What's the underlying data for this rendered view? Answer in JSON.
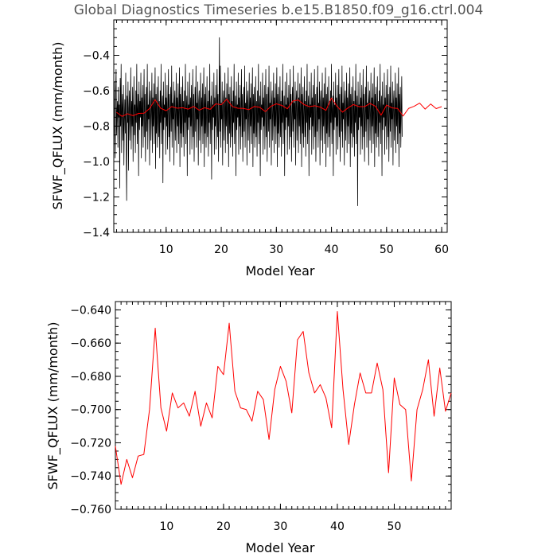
{
  "title": "Global Diagnostics Timeseries b.e15.B1850.f09_g16.ctrl.004",
  "colors": {
    "monthly_line": "#000000",
    "annual_line": "#ff0000"
  },
  "chart_data": [
    {
      "type": "line",
      "xlabel": "Model Year",
      "ylabel": "SFWF_QFLUX (mm/month)",
      "xlim": [
        0.5,
        61
      ],
      "ylim": [
        -1.4,
        -0.2
      ],
      "xticks": [
        10,
        20,
        30,
        40,
        50,
        60
      ],
      "yticks": [
        -1.4,
        -1.2,
        -1.0,
        -0.8,
        -0.6,
        -0.4
      ],
      "ytick_labels": [
        "−1.4",
        "−1.2",
        "−1.0",
        "−0.8",
        "−0.6",
        "−0.4"
      ],
      "series": [
        {
          "name": "monthly",
          "color": "#000000",
          "x_start": 0.5,
          "x_step": 0.0833333,
          "values": [
            -0.72,
            -0.55,
            -0.82,
            -0.98,
            -0.6,
            -0.48,
            -0.85,
            -0.72,
            -0.66,
            -0.92,
            -0.58,
            -0.75,
            -0.68,
            -1.15,
            -0.53,
            -0.8,
            -0.45,
            -0.95,
            -0.7,
            -0.62,
            -0.88,
            -0.57,
            -1.02,
            -0.76,
            -0.65,
            -0.84,
            -0.5,
            -0.9,
            -1.22,
            -0.63,
            -0.78,
            -0.55,
            -1.05,
            -0.7,
            -0.6,
            -0.88,
            -0.74,
            -0.47,
            -0.93,
            -0.66,
            -0.8,
            -0.58,
            -1.0,
            -0.72,
            -0.52,
            -0.85,
            -0.68,
            -0.95,
            -0.6,
            -0.78,
            -0.45,
            -0.9,
            -0.7,
            -0.62,
            -1.08,
            -0.55,
            -0.82,
            -0.66,
            -0.75,
            -0.5,
            -0.98,
            -0.64,
            -0.8,
            -0.57,
            -0.92,
            -0.7,
            -0.48,
            -0.86,
            -0.62,
            -1.0,
            -0.74,
            -0.58,
            -0.83,
            -0.45,
            -0.93,
            -0.68,
            -0.76,
            -0.55,
            -1.02,
            -0.66,
            -0.6,
            -0.88,
            -0.72,
            -0.5,
            -0.95,
            -0.64,
            -0.8,
            -0.56,
            -0.9,
            -0.7,
            -0.47,
            -1.04,
            -0.62,
            -0.84,
            -0.58,
            -0.92,
            -0.73,
            -0.52,
            -0.86,
            -0.66,
            -0.98,
            -0.6,
            -0.78,
            -0.45,
            -0.9,
            -0.7,
            -0.63,
            -1.12,
            -0.55,
            -0.82,
            -0.68,
            -0.75,
            -0.5,
            -0.96,
            -0.64,
            -0.8,
            -0.57,
            -0.93,
            -0.71,
            -0.48,
            -0.86,
            -0.62,
            -1.0,
            -0.74,
            -0.58,
            -0.83,
            -0.46,
            -0.92,
            -0.67,
            -0.76,
            -0.55,
            -1.02,
            -0.66,
            -0.6,
            -0.88,
            -0.72,
            -0.5,
            -0.95,
            -0.64,
            -0.8,
            -0.56,
            -0.9,
            -0.7,
            -0.47,
            -1.03,
            -0.62,
            -0.84,
            -0.58,
            -0.92,
            -0.73,
            -0.52,
            -0.86,
            -0.66,
            -0.97,
            -0.6,
            -0.78,
            -0.45,
            -0.9,
            -0.7,
            -0.63,
            -1.08,
            -0.55,
            -0.82,
            -0.68,
            -0.75,
            -0.5,
            -0.96,
            -0.64,
            -0.8,
            -0.57,
            -0.93,
            -0.71,
            -0.48,
            -0.86,
            -0.62,
            -1.0,
            -0.74,
            -0.58,
            -0.83,
            -0.46,
            -0.92,
            -0.67,
            -0.76,
            -0.55,
            -1.02,
            -0.66,
            -0.6,
            -0.88,
            -0.72,
            -0.5,
            -0.95,
            -0.64,
            -0.8,
            -0.56,
            -0.9,
            -0.7,
            -0.47,
            -1.03,
            -0.62,
            -0.84,
            -0.58,
            -0.92,
            -0.73,
            -0.52,
            -0.86,
            -0.66,
            -0.97,
            -0.6,
            -0.78,
            -0.45,
            -0.9,
            -0.7,
            -0.63,
            -1.1,
            -0.55,
            -0.82,
            -0.68,
            -0.75,
            -0.5,
            -0.96,
            -0.64,
            -0.8,
            -0.57,
            -0.93,
            -0.71,
            -0.48,
            -0.86,
            -0.62,
            -1.0,
            -0.74,
            -0.3,
            -0.83,
            -0.46,
            -0.92,
            -0.67,
            -0.76,
            -0.55,
            -1.02,
            -0.66,
            -0.6,
            -0.88,
            -0.72,
            -0.5,
            -0.95,
            -0.64,
            -0.8,
            -0.56,
            -0.9,
            -0.7,
            -0.47,
            -1.03,
            -0.62,
            -0.84,
            -0.58,
            -0.92,
            -0.73,
            -0.52,
            -0.86,
            -0.66,
            -0.97,
            -0.6,
            -0.78,
            -0.45,
            -0.9,
            -0.7,
            -0.63,
            -1.08,
            -0.55,
            -0.82,
            -0.68,
            -0.75,
            -0.5,
            -0.96,
            -0.64,
            -0.8,
            -0.57,
            -0.93,
            -0.71,
            -0.48,
            -0.86,
            -0.62,
            -1.0,
            -0.74,
            -0.58,
            -0.83,
            -0.46,
            -0.92,
            -0.67,
            -0.76,
            -0.55,
            -1.02,
            -0.66,
            -0.6,
            -0.88,
            -0.72,
            -0.5,
            -0.95,
            -0.64,
            -0.8,
            -0.56,
            -0.9,
            -0.7,
            -0.47,
            -1.03,
            -0.62,
            -0.84,
            -0.58,
            -0.92,
            -0.73,
            -0.52,
            -0.86,
            -0.66,
            -0.97,
            -0.6,
            -0.78,
            -0.45,
            -0.9,
            -0.7,
            -0.63,
            -1.08,
            -0.55,
            -0.82,
            -0.68,
            -0.75,
            -0.5,
            -0.96,
            -0.64,
            -0.8,
            -0.57,
            -0.93,
            -0.71,
            -0.48,
            -0.86,
            -0.62,
            -1.0,
            -0.74,
            -0.58,
            -0.83,
            -0.46,
            -0.92,
            -0.67,
            -0.76,
            -0.55,
            -1.02,
            -0.66,
            -0.6,
            -0.88,
            -0.72,
            -0.5,
            -0.95,
            -0.64,
            -0.8,
            -0.56,
            -0.9,
            -0.7,
            -0.47,
            -1.03,
            -0.62,
            -0.84,
            -0.58,
            -0.92,
            -0.73,
            -0.52,
            -0.86,
            -0.66,
            -0.97,
            -0.6,
            -0.78,
            -0.45,
            -0.9,
            -0.7,
            -0.63,
            -1.08,
            -0.55,
            -0.82,
            -0.68,
            -0.75,
            -0.5,
            -0.96,
            -0.64,
            -0.8,
            -0.57,
            -0.93,
            -0.71,
            -0.48,
            -0.86,
            -0.62,
            -1.0,
            -0.74,
            -0.58,
            -0.83,
            -0.46,
            -0.92,
            -0.67,
            -0.76,
            -0.55,
            -1.02,
            -0.66,
            -0.6,
            -0.88,
            -0.72,
            -0.5,
            -0.95,
            -0.64,
            -0.8,
            -0.56,
            -0.9,
            -0.7,
            -0.47,
            -1.03,
            -0.62,
            -0.84,
            -0.58,
            -0.92,
            -0.73,
            -0.52,
            -0.86,
            -0.66,
            -0.97,
            -0.6,
            -0.78,
            -0.45,
            -0.9,
            -0.7,
            -0.63,
            -1.08,
            -0.55,
            -0.82,
            -0.68,
            -0.75,
            -0.5,
            -0.96,
            -0.64,
            -0.8,
            -0.57,
            -0.93,
            -0.71,
            -0.48,
            -0.86,
            -0.62,
            -1.0,
            -0.74,
            -0.58,
            -0.83,
            -0.46,
            -0.92,
            -0.67,
            -0.76,
            -0.55,
            -1.02,
            -0.66,
            -0.6,
            -0.88,
            -0.72,
            -0.5,
            -0.95,
            -0.64,
            -0.8,
            -0.56,
            -0.9,
            -0.7,
            -0.47,
            -1.03,
            -0.62,
            -0.84,
            -0.58,
            -0.92,
            -0.73,
            -0.52,
            -0.86,
            -0.66,
            -0.97,
            -0.6,
            -0.78,
            -0.45,
            -0.9,
            -0.7,
            -0.63,
            -1.08,
            -0.55,
            -0.82,
            -0.68,
            -0.75,
            -0.5,
            -0.96,
            -0.64,
            -0.8,
            -0.57,
            -0.93,
            -0.71,
            -0.48,
            -0.86,
            -0.62,
            -1.0,
            -0.74,
            -0.58,
            -0.83,
            -0.46,
            -0.92,
            -0.67,
            -0.76,
            -0.55,
            -1.02,
            -0.66,
            -0.6,
            -0.88,
            -0.72,
            -0.5,
            -0.95,
            -0.64,
            -0.8,
            -0.56,
            -0.9,
            -0.7,
            -0.47,
            -1.03,
            -0.62,
            -0.84,
            -0.58,
            -0.92,
            -0.73,
            -0.52,
            -0.86,
            -0.66,
            -0.97,
            -0.6,
            -0.78,
            -0.45,
            -0.9,
            -0.7,
            -0.63,
            -1.25,
            -0.55,
            -0.82,
            -0.68,
            -0.75,
            -0.5,
            -0.96,
            -0.64,
            -0.8,
            -0.57,
            -0.93,
            -0.71,
            -0.48,
            -0.86,
            -0.62,
            -1.0,
            -0.74,
            -0.58,
            -0.83,
            -0.46,
            -0.92,
            -0.67,
            -0.76,
            -0.55,
            -1.02,
            -0.66,
            -0.6,
            -0.88,
            -0.72,
            -0.5,
            -0.95,
            -0.64,
            -0.8,
            -0.56,
            -0.9,
            -0.7,
            -0.47,
            -1.03,
            -0.62,
            -0.84,
            -0.58,
            -0.92,
            -0.73,
            -0.52,
            -0.86,
            -0.66,
            -0.97,
            -0.6,
            -0.78,
            -0.45,
            -0.9,
            -0.7,
            -0.63,
            -1.08,
            -0.55,
            -0.82,
            -0.68,
            -0.75,
            -0.5,
            -0.96,
            -0.64,
            -0.8,
            -0.57,
            -0.93,
            -0.71,
            -0.48,
            -0.86,
            -0.62,
            -1.0,
            -0.74,
            -0.58,
            -0.83,
            -0.46,
            -0.92,
            -0.67,
            -0.76,
            -0.55,
            -1.02,
            -0.66,
            -0.6,
            -0.88,
            -0.72,
            -0.5,
            -0.95,
            -0.64,
            -0.8,
            -0.56,
            -0.9,
            -0.7,
            -0.47,
            -1.03,
            -0.62,
            -0.84,
            -0.58,
            -0.92,
            -0.73,
            -0.52,
            -0.86
          ]
        },
        {
          "name": "annual mean",
          "color": "#ff0000",
          "x_start": 1,
          "x_step": 1,
          "values": [
            -0.722,
            -0.745,
            -0.73,
            -0.741,
            -0.728,
            -0.727,
            -0.7,
            -0.651,
            -0.699,
            -0.713,
            -0.69,
            -0.699,
            -0.696,
            -0.704,
            -0.689,
            -0.71,
            -0.696,
            -0.705,
            -0.674,
            -0.679,
            -0.648,
            -0.689,
            -0.699,
            -0.7,
            -0.707,
            -0.689,
            -0.694,
            -0.718,
            -0.688,
            -0.674,
            -0.683,
            -0.702,
            -0.658,
            -0.653,
            -0.678,
            -0.69,
            -0.685,
            -0.693,
            -0.711,
            -0.641,
            -0.688,
            -0.721,
            -0.697,
            -0.678,
            -0.69,
            -0.69,
            -0.672,
            -0.688,
            -0.738,
            -0.681,
            -0.697,
            -0.7,
            -0.743,
            -0.7,
            -0.688,
            -0.67,
            -0.704,
            -0.675,
            -0.701,
            -0.69
          ]
        }
      ]
    },
    {
      "type": "line",
      "xlabel": "Model Year",
      "ylabel": "SFWF_QFLUX (mm/month)",
      "xlim": [
        1,
        60
      ],
      "ylim": [
        -0.76,
        -0.635
      ],
      "xticks": [
        10,
        20,
        30,
        40,
        50
      ],
      "yticks": [
        -0.76,
        -0.74,
        -0.72,
        -0.7,
        -0.68,
        -0.66,
        -0.64
      ],
      "ytick_labels": [
        "−0.760",
        "−0.740",
        "−0.720",
        "−0.700",
        "−0.680",
        "−0.660",
        "−0.640"
      ],
      "series": [
        {
          "name": "annual mean",
          "color": "#ff0000",
          "x_start": 1,
          "x_step": 1,
          "values": [
            -0.722,
            -0.745,
            -0.73,
            -0.741,
            -0.728,
            -0.727,
            -0.7,
            -0.651,
            -0.699,
            -0.713,
            -0.69,
            -0.699,
            -0.696,
            -0.704,
            -0.689,
            -0.71,
            -0.696,
            -0.705,
            -0.674,
            -0.679,
            -0.648,
            -0.689,
            -0.699,
            -0.7,
            -0.707,
            -0.689,
            -0.694,
            -0.718,
            -0.688,
            -0.674,
            -0.683,
            -0.702,
            -0.658,
            -0.653,
            -0.678,
            -0.69,
            -0.685,
            -0.693,
            -0.711,
            -0.641,
            -0.688,
            -0.721,
            -0.697,
            -0.678,
            -0.69,
            -0.69,
            -0.672,
            -0.688,
            -0.738,
            -0.681,
            -0.697,
            -0.7,
            -0.743,
            -0.7,
            -0.688,
            -0.67,
            -0.704,
            -0.675,
            -0.701,
            -0.69
          ]
        }
      ]
    }
  ]
}
